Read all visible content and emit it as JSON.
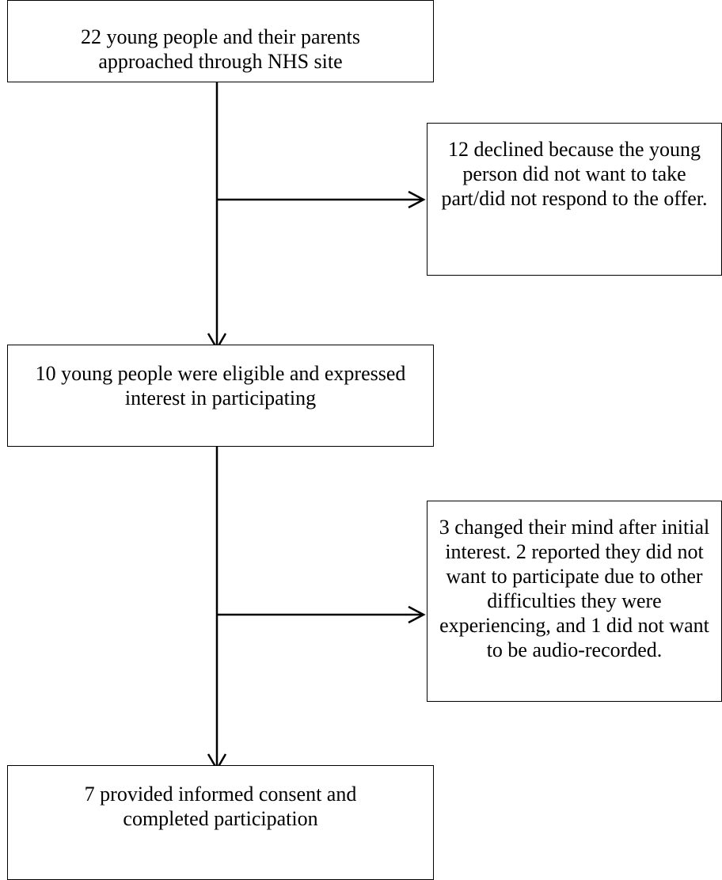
{
  "nodes": {
    "approached": {
      "text": "22 young people and their parents approached through NHS site"
    },
    "declined": {
      "text": "12 declined because the young person did not want to take part/did not respond to the offer."
    },
    "eligible": {
      "text": "10 young people were eligible and expressed interest in participating"
    },
    "changed_mind": {
      "text": "3 changed their mind after initial interest.  2 reported they did not want to participate due to other difficulties they were experiencing, and 1 did not want to be audio-recorded."
    },
    "completed": {
      "text": "7 provided informed consent and completed participation"
    }
  },
  "edges": [
    {
      "from": "approached",
      "to": "eligible"
    },
    {
      "from": "approached",
      "to": "declined"
    },
    {
      "from": "eligible",
      "to": "completed"
    },
    {
      "from": "eligible",
      "to": "changed_mind"
    }
  ],
  "colors": {
    "line": "#000000",
    "box_border": "#000000",
    "background": "#ffffff"
  }
}
